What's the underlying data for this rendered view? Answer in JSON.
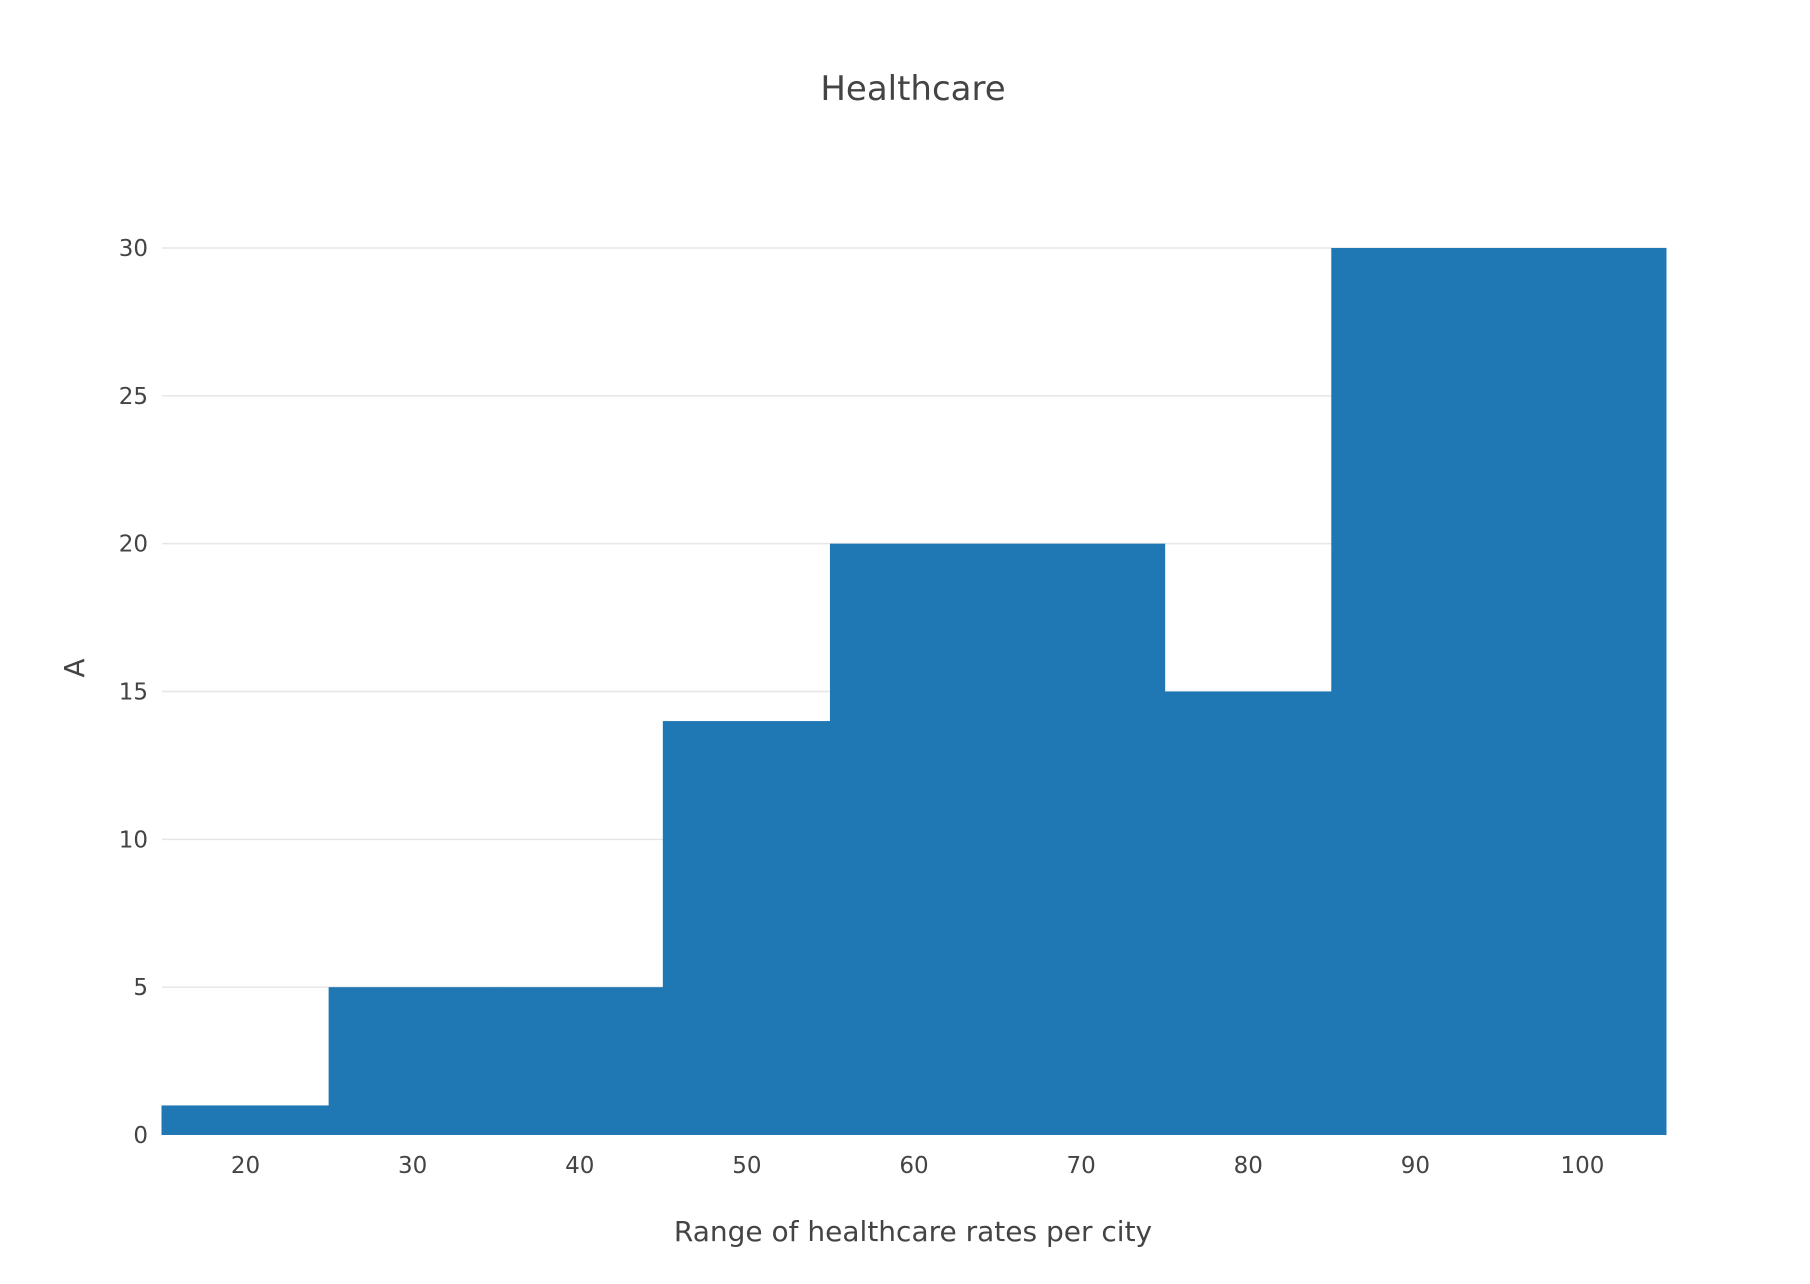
{
  "chart_data": {
    "type": "bar",
    "title": "Healthcare",
    "xlabel": "Range of healthcare rates per city",
    "ylabel": "A",
    "xlim": [
      15,
      105
    ],
    "ylim": [
      0,
      30
    ],
    "x_ticks": [
      "20",
      "30",
      "40",
      "50",
      "60",
      "70",
      "80",
      "90",
      "100"
    ],
    "y_ticks": [
      "0",
      "5",
      "10",
      "15",
      "20",
      "25",
      "30"
    ],
    "bins": [
      {
        "x0": 15,
        "x1": 25,
        "value": 1
      },
      {
        "x0": 25,
        "x1": 35,
        "value": 5
      },
      {
        "x0": 35,
        "x1": 45,
        "value": 5
      },
      {
        "x0": 45,
        "x1": 55,
        "value": 14
      },
      {
        "x0": 55,
        "x1": 65,
        "value": 20
      },
      {
        "x0": 65,
        "x1": 75,
        "value": 20
      },
      {
        "x0": 75,
        "x1": 85,
        "value": 15
      },
      {
        "x0": 85,
        "x1": 95,
        "value": 30
      },
      {
        "x0": 95,
        "x1": 105,
        "value": 30
      }
    ],
    "bar_color": "#1f77b4",
    "grid": true,
    "legend": false
  }
}
